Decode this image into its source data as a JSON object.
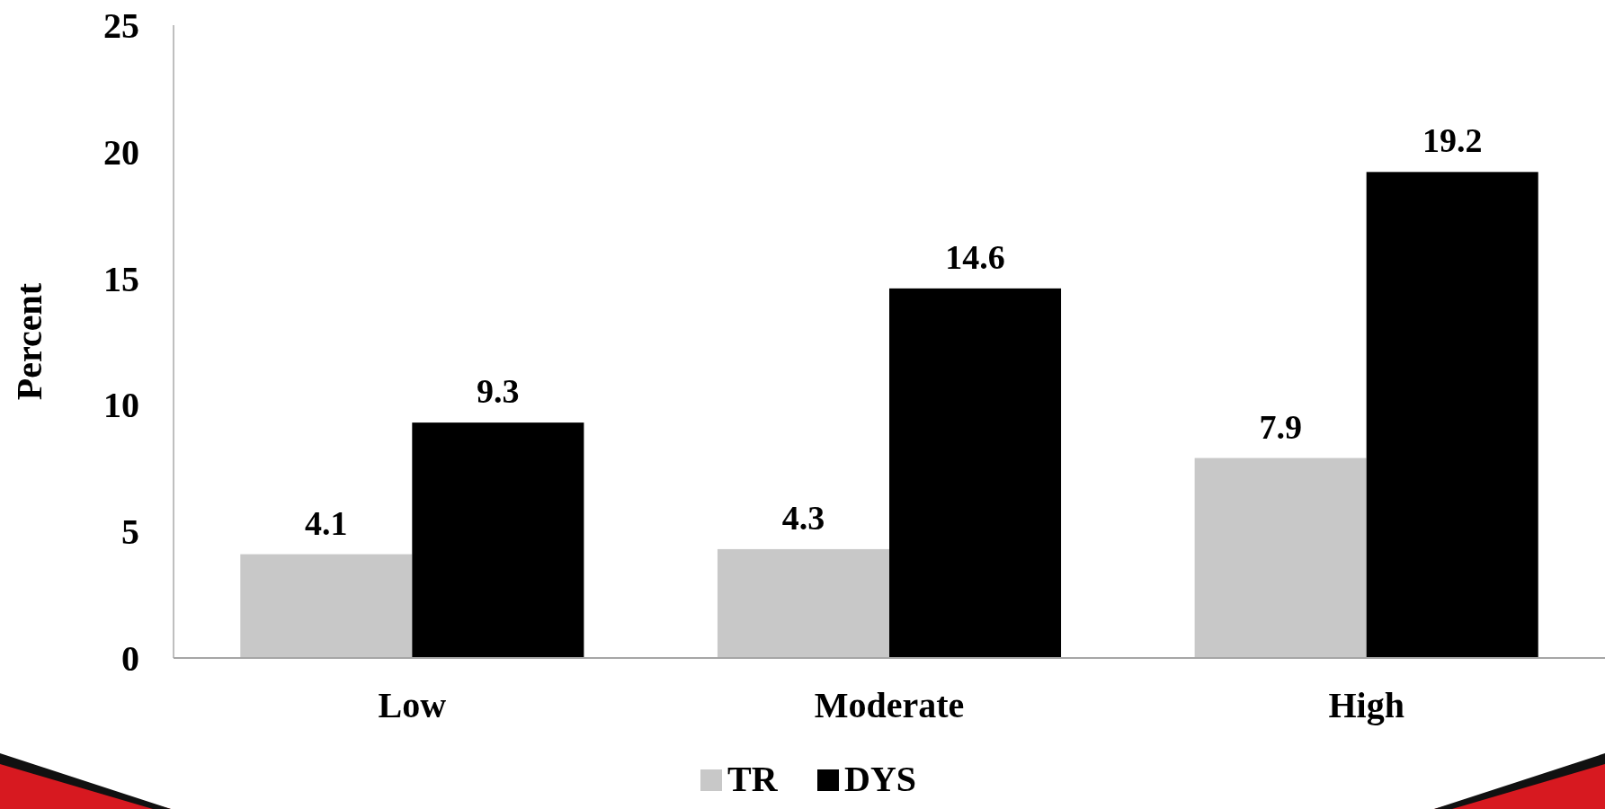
{
  "chart_data": {
    "type": "bar",
    "ylabel": "Percent",
    "categories": [
      "Low",
      "Moderate",
      "High"
    ],
    "series": [
      {
        "name": "TR",
        "color": "#c8c8c8",
        "values": [
          4.1,
          4.3,
          7.9
        ]
      },
      {
        "name": "DYS",
        "color": "#000000",
        "values": [
          9.3,
          14.6,
          19.2
        ]
      }
    ],
    "ylim": [
      0,
      25
    ],
    "yticks": [
      0,
      5,
      10,
      15,
      20,
      25
    ],
    "grid": false,
    "legend": "bottom",
    "data_labels": true
  }
}
